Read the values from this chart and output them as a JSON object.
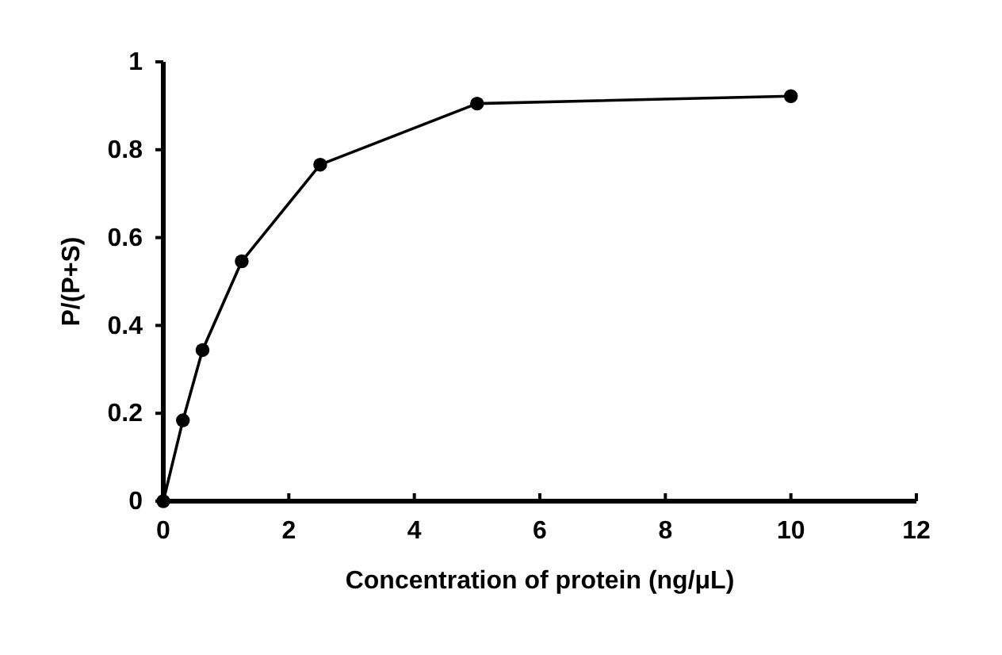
{
  "chart_data": {
    "type": "line",
    "xlabel": "Concentration of protein (ng/μL)",
    "ylabel": "P/(P+S)",
    "x": [
      0,
      0.3125,
      0.625,
      1.25,
      2.5,
      5,
      10
    ],
    "series": [
      {
        "color": "#000000",
        "values": [
          0,
          0.184,
          0.344,
          0.546,
          0.766,
          0.905,
          0.922
        ]
      }
    ],
    "xlim": [
      0,
      12
    ],
    "xticks": [
      0,
      2,
      4,
      6,
      8,
      10,
      12
    ],
    "ylim": [
      0,
      1
    ],
    "yticks": [
      0,
      0.2,
      0.4,
      0.6,
      0.8,
      1
    ],
    "marker": "circle",
    "line_style": "solid"
  }
}
